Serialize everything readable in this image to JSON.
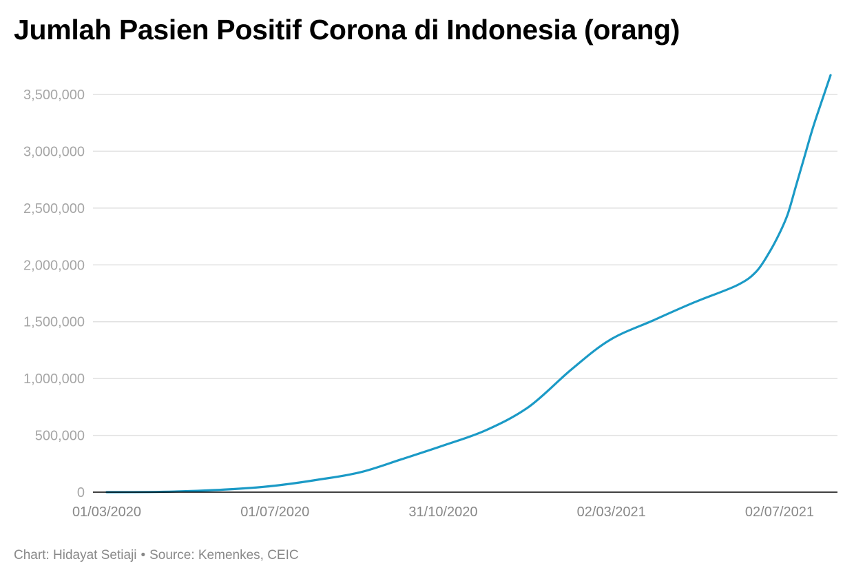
{
  "header": {
    "title": "Jumlah Pasien Positif Corona di Indonesia (orang)"
  },
  "footer": {
    "credit": "Chart: Hidayat Setiaji",
    "separator": "•",
    "source": "Source: Kemenkes, CEIC"
  },
  "colors": {
    "line": "#1b9ac6",
    "grid": "#e1e1e1",
    "axis": "#000000"
  },
  "chart_data": {
    "type": "line",
    "title": "Jumlah Pasien Positif Corona di Indonesia (orang)",
    "xlabel": "",
    "ylabel": "",
    "ylim": [
      0,
      3500000
    ],
    "grid": true,
    "yticks": [
      {
        "value": 0,
        "label": "0"
      },
      {
        "value": 500000,
        "label": "500,000"
      },
      {
        "value": 1000000,
        "label": "1,000,000"
      },
      {
        "value": 1500000,
        "label": "1,500,000"
      },
      {
        "value": 2000000,
        "label": "2,000,000"
      },
      {
        "value": 2500000,
        "label": "2,500,000"
      },
      {
        "value": 3000000,
        "label": "3,000,000"
      },
      {
        "value": 3500000,
        "label": "3,500,000"
      }
    ],
    "xticks": [
      {
        "date": "2020-03-01",
        "label": "01/03/2020"
      },
      {
        "date": "2020-07-01",
        "label": "01/07/2020"
      },
      {
        "date": "2020-10-31",
        "label": "31/10/2020"
      },
      {
        "date": "2021-03-02",
        "label": "02/03/2021"
      },
      {
        "date": "2021-07-02",
        "label": "02/07/2021"
      }
    ],
    "series": [
      {
        "points": [
          {
            "x": "2020-03-01",
            "y": 0
          },
          {
            "x": "2020-04-01",
            "y": 1500
          },
          {
            "x": "2020-05-01",
            "y": 10000
          },
          {
            "x": "2020-06-01",
            "y": 27000
          },
          {
            "x": "2020-07-01",
            "y": 57000
          },
          {
            "x": "2020-08-01",
            "y": 109000
          },
          {
            "x": "2020-09-01",
            "y": 175000
          },
          {
            "x": "2020-10-01",
            "y": 290000
          },
          {
            "x": "2020-10-31",
            "y": 410000
          },
          {
            "x": "2020-12-01",
            "y": 545000
          },
          {
            "x": "2021-01-01",
            "y": 750000
          },
          {
            "x": "2021-02-01",
            "y": 1080000
          },
          {
            "x": "2021-03-01",
            "y": 1340000
          },
          {
            "x": "2021-04-01",
            "y": 1510000
          },
          {
            "x": "2021-05-01",
            "y": 1670000
          },
          {
            "x": "2021-06-01",
            "y": 1820000
          },
          {
            "x": "2021-06-15",
            "y": 1940000
          },
          {
            "x": "2021-06-25",
            "y": 2120000
          },
          {
            "x": "2021-07-02",
            "y": 2280000
          },
          {
            "x": "2021-07-08",
            "y": 2450000
          },
          {
            "x": "2021-07-14",
            "y": 2700000
          },
          {
            "x": "2021-07-20",
            "y": 2950000
          },
          {
            "x": "2021-07-26",
            "y": 3200000
          },
          {
            "x": "2021-08-01",
            "y": 3420000
          },
          {
            "x": "2021-08-08",
            "y": 3670000
          }
        ]
      }
    ]
  }
}
